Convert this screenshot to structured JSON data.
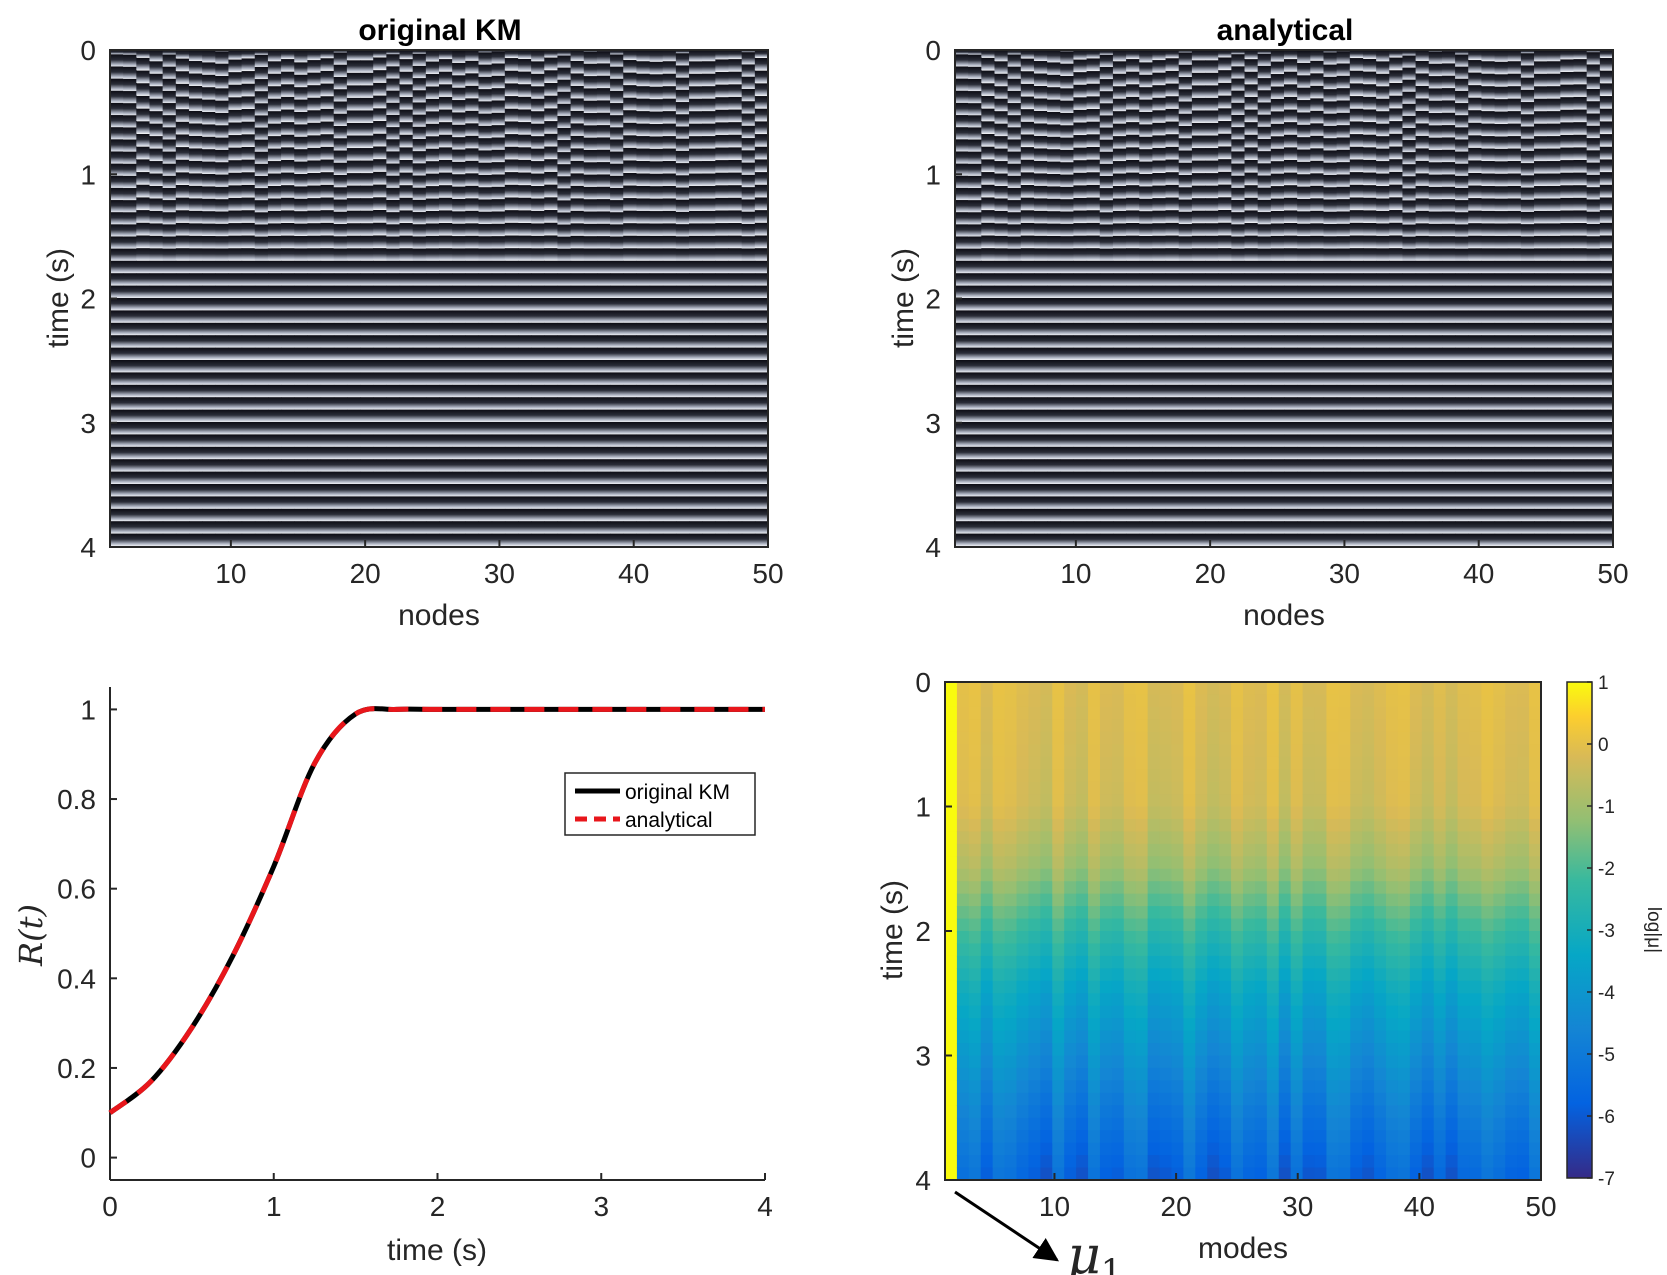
{
  "chart_data": [
    {
      "id": "panel-a",
      "type": "heatmap",
      "title": "original KM",
      "xlabel": "nodes",
      "ylabel": "time (s)",
      "xlim": [
        1,
        50
      ],
      "ylim": [
        0,
        4
      ],
      "y_reversed": true,
      "xticks": [
        10,
        20,
        30,
        40,
        50
      ],
      "yticks": [
        0,
        1,
        2,
        3,
        4
      ],
      "description_values": {
        "nodes": 50,
        "stripe_period_s": 0.1
      }
    },
    {
      "id": "panel-b",
      "type": "heatmap",
      "title": "analytical",
      "xlabel": "nodes",
      "ylabel": "time (s)",
      "xlim": [
        1,
        50
      ],
      "ylim": [
        0,
        4
      ],
      "y_reversed": true,
      "xticks": [
        10,
        20,
        30,
        40,
        50
      ],
      "yticks": [
        0,
        1,
        2,
        3,
        4
      ]
    },
    {
      "id": "panel-c",
      "type": "line",
      "title": "",
      "xlabel": "time (s)",
      "ylabel": "R(t)",
      "xlim": [
        0,
        4
      ],
      "ylim": [
        -0.05,
        1.05
      ],
      "xticks": [
        0,
        1,
        2,
        3,
        4
      ],
      "yticks": [
        0,
        0.2,
        0.4,
        0.6,
        0.8,
        1
      ],
      "ytick_labels": [
        "0",
        "0.2",
        "0.4",
        "0.6",
        "0.8",
        "1"
      ],
      "legend_position": "center-right",
      "x": [
        0,
        0.25,
        0.5,
        0.75,
        1.0,
        1.25,
        1.5,
        1.75,
        2.0,
        2.5,
        3.0,
        3.5,
        4.0
      ],
      "series": [
        {
          "name": "original KM",
          "color": "#000000",
          "style": "solid",
          "values": [
            0.1,
            0.17,
            0.29,
            0.45,
            0.65,
            0.88,
            0.99,
            1.0,
            1.0,
            1.0,
            1.0,
            1.0,
            1.0
          ]
        },
        {
          "name": "analytical",
          "color": "#e8161b",
          "style": "dashed",
          "values": [
            0.1,
            0.17,
            0.29,
            0.45,
            0.65,
            0.88,
            0.99,
            1.0,
            1.0,
            1.0,
            1.0,
            1.0,
            1.0
          ]
        }
      ]
    },
    {
      "id": "panel-d",
      "type": "heatmap",
      "title": "",
      "xlabel": "modes",
      "ylabel": "time (s)",
      "xlim": [
        1,
        50
      ],
      "ylim": [
        0,
        4
      ],
      "y_reversed": true,
      "xticks": [
        10,
        20,
        30,
        40,
        50
      ],
      "yticks": [
        0,
        1,
        2,
        3,
        4
      ],
      "colorbar": {
        "label": "log|μ|",
        "range": [
          -7,
          1
        ],
        "ticks": [
          1,
          0,
          -1,
          -2,
          -3,
          -4,
          -5,
          -6,
          -7
        ],
        "colormap": "parula"
      },
      "value_profile": {
        "time": [
          0,
          1,
          1.5,
          2,
          2.5,
          3,
          3.5,
          4
        ],
        "log_mu": [
          -0.1,
          -0.3,
          -1.0,
          -2.3,
          -3.4,
          -4.2,
          -5.0,
          -5.7
        ]
      },
      "mode_1_value": 1,
      "annotation": "μ1"
    }
  ],
  "colors": {
    "axis": "#262626",
    "stripe_dark": "#101018",
    "stripe_light": "#c8ccd6"
  }
}
